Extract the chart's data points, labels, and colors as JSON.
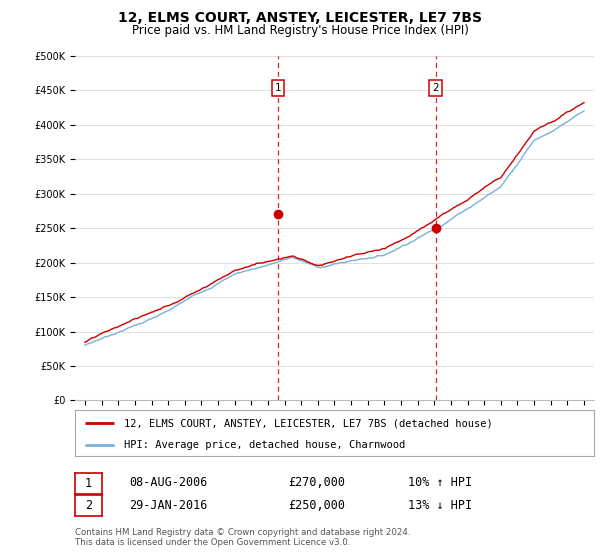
{
  "title": "12, ELMS COURT, ANSTEY, LEICESTER, LE7 7BS",
  "subtitle": "Price paid vs. HM Land Registry's House Price Index (HPI)",
  "ylim": [
    0,
    500000
  ],
  "yticks": [
    0,
    50000,
    100000,
    150000,
    200000,
    250000,
    300000,
    350000,
    400000,
    450000,
    500000
  ],
  "background_color": "#ffffff",
  "grid_color": "#e0e0e0",
  "sale1_date": 2006.6,
  "sale1_price": 270000,
  "sale2_date": 2016.08,
  "sale2_price": 250000,
  "hpi_color": "#7ab0d8",
  "sale_color": "#cc0000",
  "vline_color": "#cc0000",
  "legend_sale_label": "12, ELMS COURT, ANSTEY, LEICESTER, LE7 7BS (detached house)",
  "legend_hpi_label": "HPI: Average price, detached house, Charnwood",
  "table_row1": [
    "1",
    "08-AUG-2006",
    "£270,000",
    "10% ↑ HPI"
  ],
  "table_row2": [
    "2",
    "29-JAN-2016",
    "£250,000",
    "13% ↓ HPI"
  ],
  "footnote": "Contains HM Land Registry data © Crown copyright and database right 2024.\nThis data is licensed under the Open Government Licence v3.0.",
  "title_fontsize": 10,
  "subtitle_fontsize": 8.5,
  "tick_fontsize": 7,
  "xstart": 1995,
  "xend": 2025
}
